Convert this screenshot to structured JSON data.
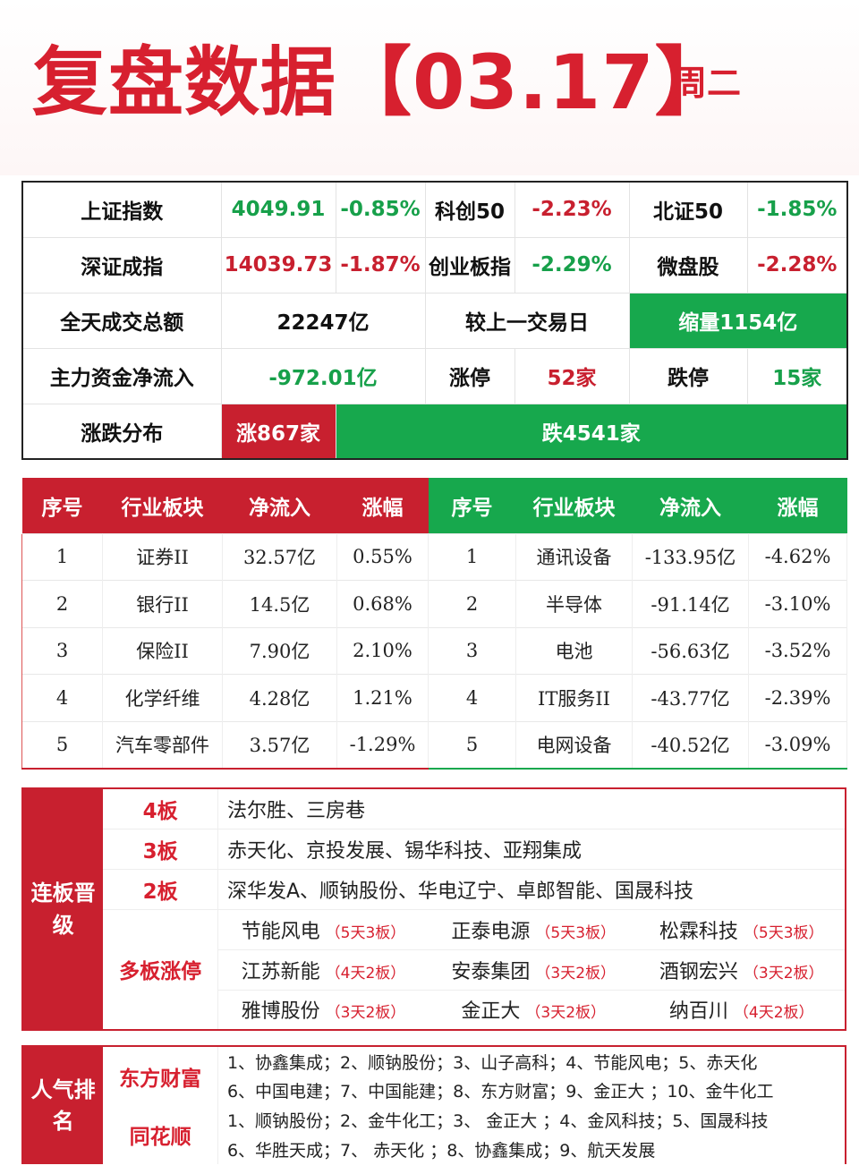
{
  "header": {
    "title": "复盘数据【03.17】",
    "weekday": "周二"
  },
  "summary": {
    "r1": {
      "a": "上证指数",
      "b": "4049.91",
      "c": "-0.85%",
      "d": "科创50",
      "e": "-2.23%",
      "f": "北证50",
      "g": "-1.85%"
    },
    "r2": {
      "a": "深证成指",
      "b": "14039.73",
      "c": "-1.87%",
      "d": "创业板指",
      "e": "-2.29%",
      "f": "微盘股",
      "g": "-2.28%"
    },
    "r3": {
      "a": "全天成交总额",
      "b": "22247亿",
      "c": "较上一交易日",
      "d": "缩量1154亿"
    },
    "r4": {
      "a": "主力资金净流入",
      "b": "-972.01亿",
      "c": "涨停",
      "d": "52家",
      "e": "跌停",
      "f": "15家"
    },
    "r5": {
      "a": "涨跌分布",
      "up": "涨867家",
      "down": "跌4541家"
    }
  },
  "sectors": {
    "headers": [
      "序号",
      "行业板块",
      "净流入",
      "涨幅"
    ],
    "inflow": [
      {
        "n": "1",
        "name": "证券II",
        "flow": "32.57亿",
        "chg": "0.55%"
      },
      {
        "n": "2",
        "name": "银行II",
        "flow": "14.5亿",
        "chg": "0.68%"
      },
      {
        "n": "3",
        "name": "保险II",
        "flow": "7.90亿",
        "chg": "2.10%"
      },
      {
        "n": "4",
        "name": "化学纤维",
        "flow": "4.28亿",
        "chg": "1.21%"
      },
      {
        "n": "5",
        "name": "汽车零部件",
        "flow": "3.57亿",
        "chg": "-1.29%"
      }
    ],
    "outflow": [
      {
        "n": "1",
        "name": "通讯设备",
        "flow": "-133.95亿",
        "chg": "-4.62%"
      },
      {
        "n": "2",
        "name": "半导体",
        "flow": "-91.14亿",
        "chg": "-3.10%"
      },
      {
        "n": "3",
        "name": "电池",
        "flow": "-56.63亿",
        "chg": "-3.52%"
      },
      {
        "n": "4",
        "name": "IT服务II",
        "flow": "-43.77亿",
        "chg": "-2.39%"
      },
      {
        "n": "5",
        "name": "电网设备",
        "flow": "-40.52亿",
        "chg": "-3.09%"
      }
    ]
  },
  "board": {
    "side": "连板晋级",
    "l4": {
      "label": "4板",
      "names": "法尔胜、三房巷"
    },
    "l3": {
      "label": "3板",
      "names": "赤天化、京投发展、锡华科技、亚翔集成"
    },
    "l2": {
      "label": "2板",
      "names": "深华发A、顺钠股份、华电辽宁、卓郎智能、国晟科技"
    },
    "multi": {
      "label": "多板涨停",
      "items": [
        {
          "name": "节能风电",
          "tag": "（5天3板）"
        },
        {
          "name": "正泰电源",
          "tag": "（5天3板）"
        },
        {
          "name": "松霖科技",
          "tag": "（5天3板）"
        },
        {
          "name": "江苏新能",
          "tag": "（4天2板）"
        },
        {
          "name": "安泰集团",
          "tag": "（3天2板）"
        },
        {
          "name": "酒钢宏兴",
          "tag": "（3天2板）"
        },
        {
          "name": "雅博股份",
          "tag": "（3天2板）"
        },
        {
          "name": "金正大",
          "tag": "（3天2板）"
        },
        {
          "name": "纳百川",
          "tag": "（4天2板）"
        }
      ]
    }
  },
  "rank": {
    "side": "人气排名",
    "dfcf": {
      "label": "东方财富",
      "line1": "1、协鑫集成；2、顺钠股份；3、山子高科；4、节能风电；5、赤天化",
      "line2": "6、中国电建；7、中国能建；8、东方财富；9、金正大 ；10、金牛化工"
    },
    "ths": {
      "label": "同花顺",
      "line1": "1、顺钠股份；2、金牛化工；3、 金正大 ；4、金风科技；5、国晟科技",
      "line2": "6、华胜天成；7、 赤天化 ；8、协鑫集成；9、航天发展"
    }
  }
}
